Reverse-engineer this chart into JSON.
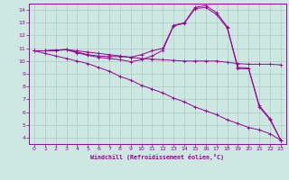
{
  "xlabel": "Windchill (Refroidissement éolien,°C)",
  "xlim": [
    -0.5,
    23.5
  ],
  "ylim": [
    3.5,
    14.5
  ],
  "yticks": [
    4,
    5,
    6,
    7,
    8,
    9,
    10,
    11,
    12,
    13,
    14
  ],
  "xticks": [
    0,
    1,
    2,
    3,
    4,
    5,
    6,
    7,
    8,
    9,
    10,
    11,
    12,
    13,
    14,
    15,
    16,
    17,
    18,
    19,
    20,
    21,
    22,
    23
  ],
  "bg_color": "#cce8e0",
  "grid_color": "#aaccc4",
  "line_color": "#990099",
  "curves": [
    {
      "x": [
        0,
        1,
        2,
        3,
        4,
        5,
        6,
        7,
        8,
        9,
        10,
        11,
        12,
        13,
        14,
        15,
        16,
        17,
        18,
        19,
        20,
        21,
        22,
        23
      ],
      "y": [
        10.8,
        10.8,
        10.85,
        10.9,
        10.8,
        10.7,
        10.6,
        10.5,
        10.4,
        10.3,
        10.2,
        10.15,
        10.1,
        10.05,
        10.0,
        10.0,
        10.0,
        10.0,
        9.9,
        9.8,
        9.75,
        9.75,
        9.75,
        9.7
      ]
    },
    {
      "x": [
        0,
        1,
        2,
        3,
        4,
        5,
        6,
        7,
        8,
        9,
        10,
        11,
        12,
        13,
        14,
        15,
        16,
        17,
        18,
        19,
        20,
        21,
        22,
        23
      ],
      "y": [
        10.8,
        10.8,
        10.85,
        10.9,
        10.7,
        10.5,
        10.4,
        10.35,
        10.35,
        10.3,
        10.5,
        10.8,
        11.0,
        12.8,
        13.0,
        14.2,
        14.35,
        13.8,
        12.7,
        9.5,
        9.45,
        6.5,
        5.5,
        3.8
      ]
    },
    {
      "x": [
        0,
        1,
        2,
        3,
        4,
        5,
        6,
        7,
        8,
        9,
        10,
        11,
        12,
        13,
        14,
        15,
        16,
        17,
        18,
        19,
        20,
        21,
        22,
        23
      ],
      "y": [
        10.8,
        10.8,
        10.82,
        10.88,
        10.65,
        10.45,
        10.3,
        10.2,
        10.1,
        9.95,
        10.1,
        10.4,
        10.85,
        12.75,
        12.95,
        14.1,
        14.2,
        13.65,
        12.6,
        9.4,
        9.4,
        6.4,
        5.4,
        3.8
      ]
    },
    {
      "x": [
        0,
        1,
        2,
        3,
        4,
        5,
        6,
        7,
        8,
        9,
        10,
        11,
        12,
        13,
        14,
        15,
        16,
        17,
        18,
        19,
        20,
        21,
        22,
        23
      ],
      "y": [
        10.8,
        10.6,
        10.4,
        10.2,
        10.0,
        9.8,
        9.5,
        9.2,
        8.8,
        8.5,
        8.1,
        7.8,
        7.5,
        7.1,
        6.8,
        6.4,
        6.1,
        5.8,
        5.4,
        5.1,
        4.8,
        4.6,
        4.3,
        3.8
      ]
    }
  ]
}
